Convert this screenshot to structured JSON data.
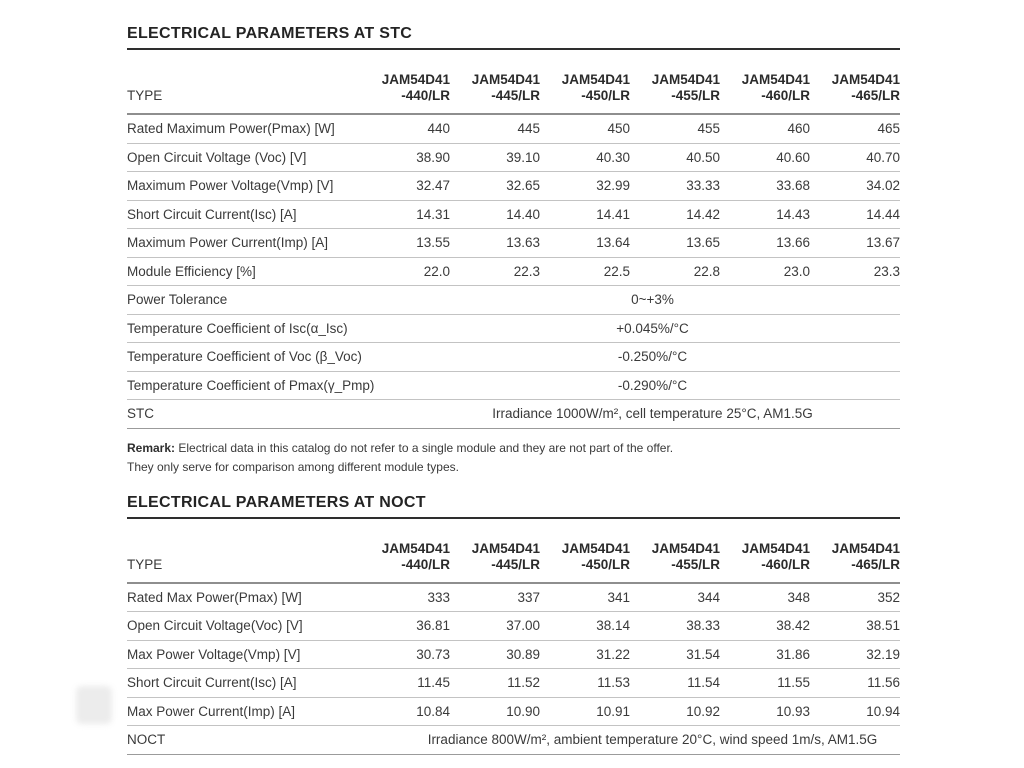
{
  "stc": {
    "title": "ELECTRICAL PARAMETERS AT STC",
    "type_label": "TYPE",
    "columns": [
      {
        "model": "JAM54D41",
        "variant": "-440/LR"
      },
      {
        "model": "JAM54D41",
        "variant": "-445/LR"
      },
      {
        "model": "JAM54D41",
        "variant": "-450/LR"
      },
      {
        "model": "JAM54D41",
        "variant": "-455/LR"
      },
      {
        "model": "JAM54D41",
        "variant": "-460/LR"
      },
      {
        "model": "JAM54D41",
        "variant": "-465/LR"
      }
    ],
    "rows": [
      {
        "label": "Rated Maximum Power(Pmax) [W]",
        "values": [
          "440",
          "445",
          "450",
          "455",
          "460",
          "465"
        ]
      },
      {
        "label": "Open Circuit Voltage (Voc) [V]",
        "values": [
          "38.90",
          "39.10",
          "40.30",
          "40.50",
          "40.60",
          "40.70"
        ]
      },
      {
        "label": "Maximum Power Voltage(Vmp) [V]",
        "values": [
          "32.47",
          "32.65",
          "32.99",
          "33.33",
          "33.68",
          "34.02"
        ]
      },
      {
        "label": "Short Circuit Current(Isc) [A]",
        "values": [
          "14.31",
          "14.40",
          "14.41",
          "14.42",
          "14.43",
          "14.44"
        ]
      },
      {
        "label": "Maximum Power Current(Imp) [A]",
        "values": [
          "13.55",
          "13.63",
          "13.64",
          "13.65",
          "13.66",
          "13.67"
        ]
      },
      {
        "label": "Module Efficiency [%]",
        "values": [
          "22.0",
          "22.3",
          "22.5",
          "22.8",
          "23.0",
          "23.3"
        ]
      }
    ],
    "merged": [
      {
        "label": "Power Tolerance",
        "value": "0~+3%"
      },
      {
        "label": "Temperature Coefficient of Isc(α_Isc)",
        "value": "+0.045%/°C"
      },
      {
        "label": "Temperature Coefficient of Voc (β_Voc)",
        "value": "-0.250%/°C"
      },
      {
        "label": "Temperature Coefficient of Pmax(γ_Pmp)",
        "value": "-0.290%/°C"
      },
      {
        "label": "STC",
        "value": "Irradiance 1000W/m², cell temperature 25°C, AM1.5G"
      }
    ]
  },
  "remark": {
    "label": "Remark:",
    "line1": " Electrical data in this catalog do not refer to a single module and they are not part of the offer.",
    "line2": "They only serve for comparison among different module types."
  },
  "noct": {
    "title": "ELECTRICAL PARAMETERS AT NOCT",
    "type_label": "TYPE",
    "columns": [
      {
        "model": "JAM54D41",
        "variant": "-440/LR"
      },
      {
        "model": "JAM54D41",
        "variant": "-445/LR"
      },
      {
        "model": "JAM54D41",
        "variant": "-450/LR"
      },
      {
        "model": "JAM54D41",
        "variant": "-455/LR"
      },
      {
        "model": "JAM54D41",
        "variant": "-460/LR"
      },
      {
        "model": "JAM54D41",
        "variant": "-465/LR"
      }
    ],
    "rows": [
      {
        "label": "Rated Max Power(Pmax) [W]",
        "values": [
          "333",
          "337",
          "341",
          "344",
          "348",
          "352"
        ]
      },
      {
        "label": "Open Circuit Voltage(Voc) [V]",
        "values": [
          "36.81",
          "37.00",
          "38.14",
          "38.33",
          "38.42",
          "38.51"
        ]
      },
      {
        "label": "Max Power Voltage(Vmp) [V]",
        "values": [
          "30.73",
          "30.89",
          "31.22",
          "31.54",
          "31.86",
          "32.19"
        ]
      },
      {
        "label": "Short Circuit Current(Isc) [A]",
        "values": [
          "11.45",
          "11.52",
          "11.53",
          "11.54",
          "11.55",
          "11.56"
        ]
      },
      {
        "label": "Max Power Current(Imp) [A]",
        "values": [
          "10.84",
          "10.90",
          "10.91",
          "10.92",
          "10.93",
          "10.94"
        ]
      }
    ],
    "merged": [
      {
        "label": "NOCT",
        "value": "Irradiance 800W/m², ambient temperature 20°C, wind speed 1m/s, AM1.5G"
      }
    ]
  }
}
